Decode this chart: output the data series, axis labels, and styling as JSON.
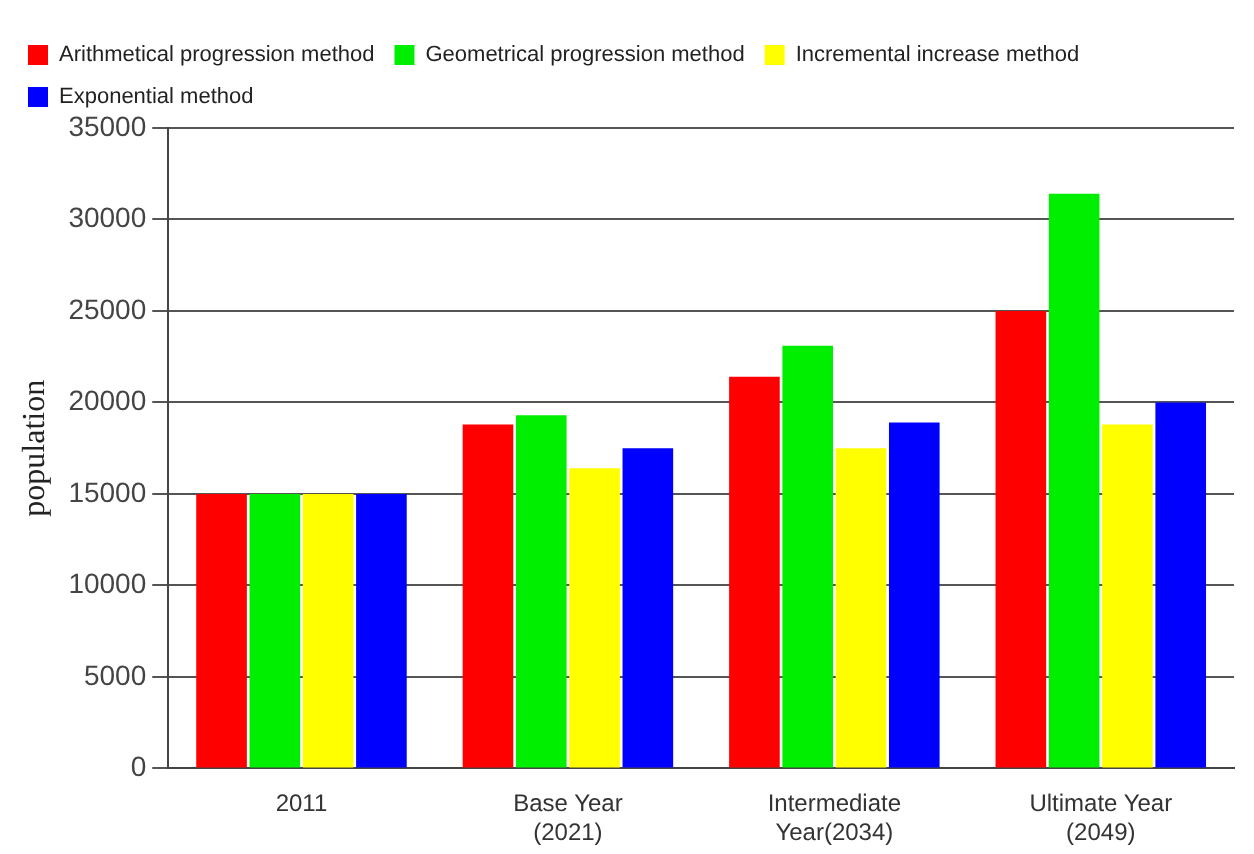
{
  "chart_data": {
    "type": "bar",
    "ylabel": "population",
    "categories": [
      "2011",
      "Base Year\n(2021)",
      "Intermediate\nYear(2034)",
      "Ultimate Year\n(2049)"
    ],
    "series": [
      {
        "name": "Arithmetical progression method",
        "color": "#ff0000",
        "values": [
          15000,
          18800,
          21400,
          25000
        ]
      },
      {
        "name": "Geometrical progression method",
        "color": "#00ee00",
        "values": [
          15000,
          19300,
          23100,
          31400
        ]
      },
      {
        "name": "Incremental increase method",
        "color": "#ffff00",
        "values": [
          15000,
          16400,
          17500,
          18800
        ]
      },
      {
        "name": "Exponential method",
        "color": "#0000ff",
        "values": [
          15000,
          17500,
          18900,
          20000
        ]
      }
    ],
    "ylim": [
      0,
      35000
    ],
    "yticks": [
      0,
      5000,
      10000,
      15000,
      20000,
      25000,
      30000,
      35000
    ],
    "grid": "y",
    "legend": "top left"
  }
}
